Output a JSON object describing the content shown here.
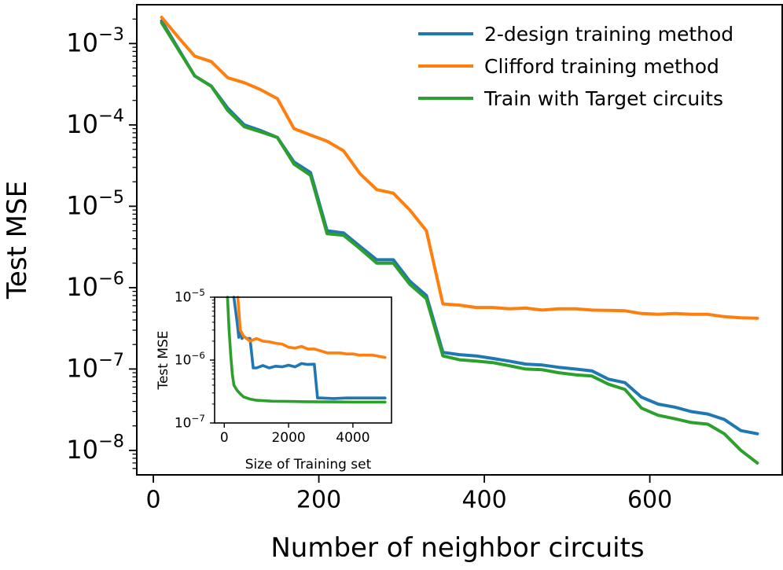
{
  "chart_data": [
    {
      "type": "line",
      "yscale": "log",
      "xlabel": "Number of neighbor circuits",
      "ylabel": "Test MSE",
      "xlim": [
        -20,
        760
      ],
      "ylim": [
        5e-09,
        0.003
      ],
      "x_ticks": [
        {
          "value": 0,
          "label": "0"
        },
        {
          "value": 200,
          "label": "200"
        },
        {
          "value": 400,
          "label": "400"
        },
        {
          "value": 600,
          "label": "600"
        }
      ],
      "y_ticks": [
        {
          "exp": -3,
          "base": "10",
          "sup": "−3"
        },
        {
          "exp": -4,
          "base": "10",
          "sup": "−4"
        },
        {
          "exp": -5,
          "base": "10",
          "sup": "−5"
        },
        {
          "exp": -6,
          "base": "10",
          "sup": "−6"
        },
        {
          "exp": -7,
          "base": "10",
          "sup": "−7"
        },
        {
          "exp": -8,
          "base": "10",
          "sup": "−8"
        }
      ],
      "legend_position": "top-right",
      "series": [
        {
          "name": "2-design training method",
          "color": "#1f77b4",
          "x": [
            10,
            50,
            70,
            90,
            110,
            130,
            150,
            170,
            190,
            210,
            230,
            250,
            270,
            290,
            310,
            330,
            350,
            370,
            390,
            410,
            430,
            450,
            470,
            490,
            510,
            530,
            550,
            570,
            590,
            610,
            630,
            650,
            670,
            690,
            710,
            730
          ],
          "y": [
            0.0019,
            0.0004,
            0.0003,
            0.00016,
            0.0001,
            8.5e-05,
            7e-05,
            3.5e-05,
            2.6e-05,
            5e-06,
            4.7e-06,
            3.2e-06,
            2.2e-06,
            2.2e-06,
            1.2e-06,
            8e-07,
            1.6e-07,
            1.5e-07,
            1.45e-07,
            1.35e-07,
            1.25e-07,
            1.15e-07,
            1.12e-07,
            1.05e-07,
            1e-07,
            9.5e-08,
            7.5e-08,
            6.8e-08,
            4.5e-08,
            3.7e-08,
            3.4e-08,
            3e-08,
            2.8e-08,
            2.4e-08,
            1.75e-08,
            1.6e-08
          ]
        },
        {
          "name": "Clifford training method",
          "color": "#ff7f0e",
          "x": [
            10,
            30,
            50,
            70,
            90,
            110,
            130,
            150,
            170,
            190,
            210,
            230,
            250,
            270,
            290,
            310,
            330,
            350,
            370,
            390,
            410,
            430,
            450,
            470,
            490,
            510,
            530,
            550,
            570,
            590,
            610,
            630,
            650,
            670,
            690,
            710,
            730
          ],
          "y": [
            0.0021,
            0.0012,
            0.0007,
            0.0006,
            0.00038,
            0.00033,
            0.00027,
            0.00021,
            9e-05,
            7.5e-05,
            6.3e-05,
            4.8e-05,
            2.5e-05,
            1.6e-05,
            1.45e-05,
            9e-06,
            5e-06,
            6.3e-07,
            6.1e-07,
            5.7e-07,
            5.7e-07,
            5.5e-07,
            5.6e-07,
            5.3e-07,
            5.5e-07,
            5.5e-07,
            5.3e-07,
            5.25e-07,
            5.2e-07,
            4.8e-07,
            4.7e-07,
            4.8e-07,
            4.7e-07,
            4.7e-07,
            4.4e-07,
            4.25e-07,
            4.2e-07
          ]
        },
        {
          "name": "Train with Target circuits",
          "color": "#2ca02c",
          "x": [
            10,
            50,
            70,
            90,
            110,
            130,
            150,
            170,
            190,
            210,
            230,
            250,
            270,
            290,
            310,
            330,
            350,
            370,
            390,
            410,
            430,
            450,
            470,
            490,
            510,
            530,
            550,
            570,
            590,
            610,
            630,
            650,
            670,
            690,
            710,
            730
          ],
          "y": [
            0.0018,
            0.0004,
            0.0003,
            0.00015,
            9.5e-05,
            8.2e-05,
            7e-05,
            3.3e-05,
            2.4e-05,
            4.6e-06,
            4.4e-06,
            3e-06,
            2e-06,
            2e-06,
            1.1e-06,
            7.3e-07,
            1.45e-07,
            1.3e-07,
            1.25e-07,
            1.2e-07,
            1.1e-07,
            1e-07,
            9.8e-08,
            9e-08,
            8.5e-08,
            8.2e-08,
            6.5e-08,
            5.6e-08,
            3.3e-08,
            2.7e-08,
            2.45e-08,
            2.2e-08,
            2.1e-08,
            1.6e-08,
            1e-08,
            7e-09
          ]
        }
      ]
    },
    {
      "type": "line",
      "yscale": "log",
      "inset": true,
      "xlabel": "Size of Training set",
      "ylabel": "Test MSE",
      "xlim": [
        -300,
        5200
      ],
      "ylim": [
        1e-07,
        1e-05
      ],
      "x_ticks": [
        {
          "value": 0,
          "label": "0"
        },
        {
          "value": 2000,
          "label": "2000"
        },
        {
          "value": 4000,
          "label": "4000"
        }
      ],
      "y_ticks": [
        {
          "exp": -5,
          "base": "10",
          "sup": "−5"
        },
        {
          "exp": -6,
          "base": "10",
          "sup": "−6"
        },
        {
          "exp": -7,
          "base": "10",
          "sup": "−7"
        }
      ],
      "series": [
        {
          "name": "2-design training method",
          "color": "#1f77b4",
          "x": [
            300,
            400,
            450,
            500,
            550,
            600,
            700,
            800,
            900,
            1000,
            1200,
            1400,
            1600,
            1800,
            2000,
            2200,
            2400,
            2600,
            2800,
            2900,
            3000,
            3400,
            3800,
            4200,
            4600,
            5000
          ],
          "y": [
            1e-05,
            4e-06,
            2.3e-06,
            2.8e-06,
            2.2e-06,
            2.4e-06,
            2.2e-06,
            2.2e-06,
            7.5e-07,
            7.5e-07,
            8.2e-07,
            7.5e-07,
            8e-07,
            7.8e-07,
            8.3e-07,
            7.8e-07,
            8.8e-07,
            8.5e-07,
            8.6e-07,
            2.5e-07,
            2.5e-07,
            2.45e-07,
            2.5e-07,
            2.5e-07,
            2.5e-07,
            2.5e-07
          ]
        },
        {
          "name": "Clifford training method",
          "color": "#ff7f0e",
          "x": [
            420,
            500,
            600,
            800,
            1000,
            1200,
            1400,
            1600,
            1800,
            2000,
            2200,
            2400,
            2600,
            2800,
            3000,
            3200,
            3400,
            3600,
            3800,
            4000,
            4200,
            4400,
            4600,
            4800,
            5000
          ],
          "y": [
            1e-05,
            3e-06,
            2.4e-06,
            2e-06,
            2.2e-06,
            2e-06,
            1.95e-06,
            1.85e-06,
            1.8e-06,
            1.6e-06,
            1.55e-06,
            1.65e-06,
            1.5e-06,
            1.5e-06,
            1.4e-06,
            1.3e-06,
            1.3e-06,
            1.3e-06,
            1.25e-06,
            1.25e-06,
            1.2e-06,
            1.2e-06,
            1.2e-06,
            1.15e-06,
            1.1e-06
          ]
        },
        {
          "name": "Train with Target circuits",
          "color": "#2ca02c",
          "x": [
            100,
            150,
            200,
            250,
            300,
            400,
            500,
            600,
            800,
            1000,
            1500,
            2000,
            2500,
            3000,
            3500,
            4000,
            4500,
            5000
          ],
          "y": [
            1e-05,
            3e-06,
            1.2e-06,
            6e-07,
            4e-07,
            3.3e-07,
            2.9e-07,
            2.6e-07,
            2.4e-07,
            2.3e-07,
            2.22e-07,
            2.2e-07,
            2.18e-07,
            2.17e-07,
            2.16e-07,
            2.15e-07,
            2.15e-07,
            2.15e-07
          ]
        }
      ]
    }
  ]
}
